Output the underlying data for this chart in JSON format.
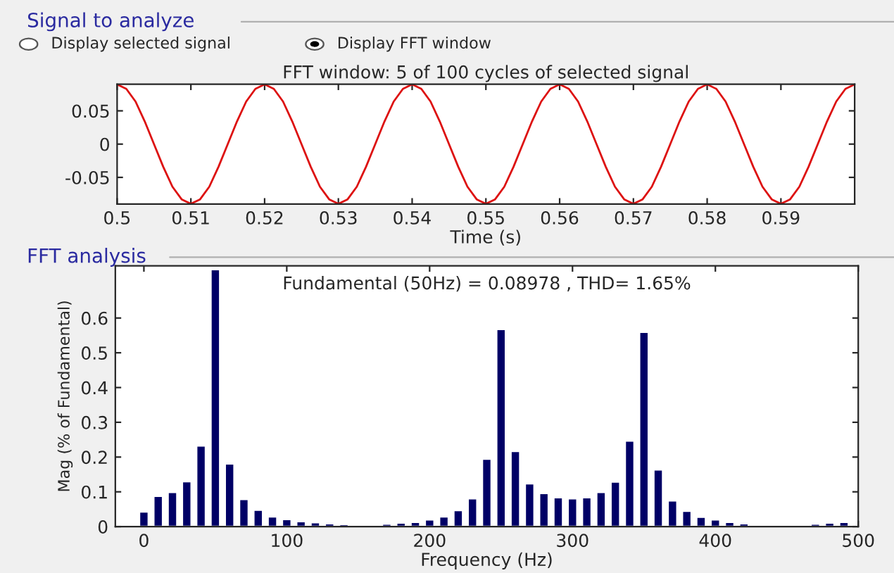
{
  "chart_data": [
    {
      "type": "line",
      "title": "FFT window: 5 of 100 cycles of selected signal",
      "xlabel": "Time (s)",
      "annotations": [
        "Signal to analyze",
        "Display selected signal",
        "Display FFT window"
      ],
      "x": [
        0.5,
        0.50125,
        0.5025,
        0.50375,
        0.505,
        0.50625,
        0.5075,
        0.50875,
        0.51,
        0.51125,
        0.5125,
        0.51375,
        0.515,
        0.51625,
        0.5175,
        0.51875,
        0.52,
        0.52125,
        0.5225,
        0.52375,
        0.525,
        0.52625,
        0.5275,
        0.52875,
        0.53,
        0.53125,
        0.5325,
        0.53375,
        0.535,
        0.53625,
        0.5375,
        0.53875,
        0.54,
        0.54125,
        0.5425,
        0.54375,
        0.545,
        0.54625,
        0.5475,
        0.54875,
        0.55,
        0.55125,
        0.5525,
        0.55375,
        0.555,
        0.55625,
        0.5575,
        0.55875,
        0.56,
        0.56125,
        0.5625,
        0.56375,
        0.565,
        0.56625,
        0.5675,
        0.56875,
        0.57,
        0.57125,
        0.5725,
        0.57375,
        0.575,
        0.57625,
        0.5775,
        0.57875,
        0.58,
        0.58125,
        0.5825,
        0.58375,
        0.585,
        0.58625,
        0.5875,
        0.58875,
        0.59,
        0.59125,
        0.5925,
        0.59375,
        0.595,
        0.59625,
        0.5975,
        0.59875,
        0.6
      ],
      "series": [
        {
          "color": "#dd1111",
          "values": [
            0.0898,
            0.083,
            0.064,
            0.034,
            0,
            -0.034,
            -0.064,
            -0.083,
            -0.0898,
            -0.083,
            -0.064,
            -0.034,
            0,
            0.034,
            0.064,
            0.083,
            0.0898,
            0.083,
            0.064,
            0.034,
            0,
            -0.034,
            -0.064,
            -0.083,
            -0.0898,
            -0.083,
            -0.064,
            -0.034,
            0,
            0.034,
            0.064,
            0.083,
            0.0898,
            0.083,
            0.064,
            0.034,
            0,
            -0.034,
            -0.064,
            -0.083,
            -0.0898,
            -0.083,
            -0.064,
            -0.034,
            0,
            0.034,
            0.064,
            0.083,
            0.0898,
            0.083,
            0.064,
            0.034,
            0,
            -0.034,
            -0.064,
            -0.083,
            -0.0898,
            -0.083,
            -0.064,
            -0.034,
            0,
            0.034,
            0.064,
            0.083,
            0.0898,
            0.083,
            0.064,
            0.034,
            0,
            -0.034,
            -0.064,
            -0.083,
            -0.0898,
            -0.083,
            -0.064,
            -0.034,
            0,
            0.034,
            0.064,
            0.083,
            0.0898
          ]
        }
      ],
      "xlim": [
        0.5,
        0.6
      ],
      "ylim": [
        -0.09,
        0.09
      ],
      "xticks": [
        0.5,
        0.51,
        0.52,
        0.53,
        0.54,
        0.55,
        0.56,
        0.57,
        0.58,
        0.59
      ],
      "yticks": [
        -0.05,
        0,
        0.05
      ],
      "grid": false
    },
    {
      "type": "bar",
      "title": "Fundamental (50Hz) = 0.08978 , THD= 1.65%",
      "xlabel": "Frequency (Hz)",
      "ylabel": "Mag (% of Fundamental)",
      "annotations": [
        "FFT analysis"
      ],
      "x": [
        0,
        10,
        20,
        30,
        40,
        50,
        60,
        70,
        80,
        90,
        100,
        110,
        120,
        130,
        140,
        150,
        160,
        170,
        180,
        190,
        200,
        210,
        220,
        230,
        240,
        250,
        260,
        270,
        280,
        290,
        300,
        310,
        320,
        330,
        340,
        350,
        360,
        370,
        380,
        390,
        400,
        410,
        420,
        430,
        440,
        450,
        460,
        470,
        480,
        490
      ],
      "series": [
        {
          "color": "#000066",
          "values": [
            0.043,
            0.088,
            0.099,
            0.13,
            0.233,
            0.74,
            0.181,
            0.079,
            0.048,
            0.029,
            0.021,
            0.015,
            0.012,
            0.009,
            0.007,
            0.004,
            0.005,
            0.008,
            0.011,
            0.013,
            0.02,
            0.029,
            0.047,
            0.081,
            0.195,
            0.568,
            0.217,
            0.124,
            0.096,
            0.084,
            0.081,
            0.084,
            0.099,
            0.129,
            0.247,
            0.56,
            0.164,
            0.075,
            0.045,
            0.028,
            0.02,
            0.013,
            0.009,
            0.005,
            0.004,
            0.004,
            0.005,
            0.008,
            0.011,
            0.013
          ]
        }
      ],
      "xlim": [
        -20,
        500
      ],
      "ylim": [
        0,
        0.75
      ],
      "xticks": [
        0,
        100,
        200,
        300,
        400,
        500
      ],
      "yticks": [
        0,
        0.1,
        0.2,
        0.3,
        0.4,
        0.5,
        0.6
      ],
      "grid": false
    }
  ]
}
